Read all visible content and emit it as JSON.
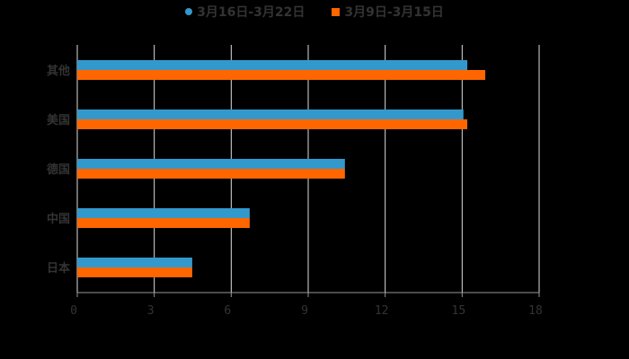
{
  "legend": [
    {
      "label": "3月16日-3月22日",
      "color": "#3399cc",
      "shape": "circle"
    },
    {
      "label": "3月9日-3月15日",
      "color": "#ff6600",
      "shape": "square"
    }
  ],
  "chart_data": {
    "type": "bar",
    "orientation": "horizontal",
    "categories": [
      "其他",
      "美国",
      "德国",
      "中国",
      "日本"
    ],
    "series": [
      {
        "name": "3月16日-3月22日",
        "color": "#3399cc",
        "values": [
          15.2,
          15.05,
          10.43,
          6.72,
          4.48
        ]
      },
      {
        "name": "3月9日-3月15日",
        "color": "#ff6600",
        "values": [
          15.9,
          15.2,
          10.43,
          6.72,
          4.48
        ]
      }
    ],
    "x_ticks": [
      "0",
      "3",
      "6",
      "9",
      "12",
      "15",
      "18"
    ],
    "xlim": [
      0,
      18
    ],
    "grid": true,
    "legend_position": "top",
    "title": "",
    "xlabel": "",
    "ylabel": ""
  }
}
